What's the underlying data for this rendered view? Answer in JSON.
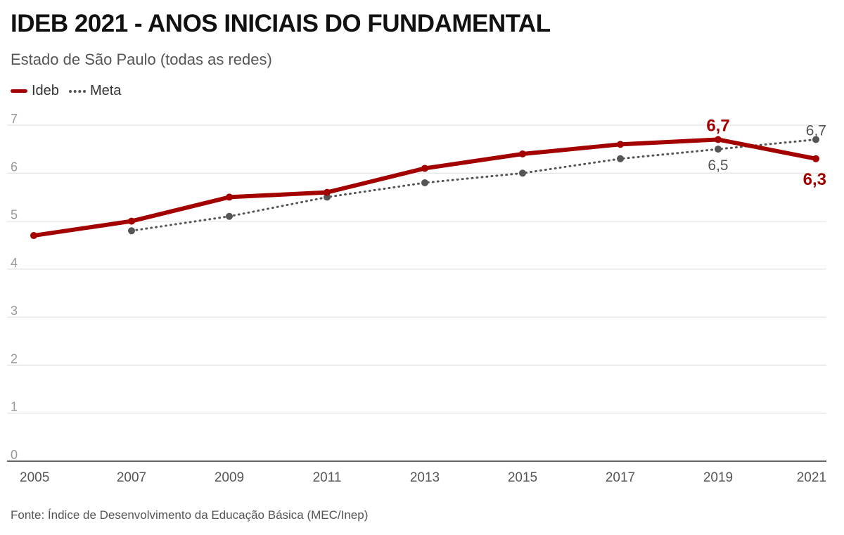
{
  "header": {
    "title": "IDEB 2021 - ANOS INICIAIS DO FUNDAMENTAL",
    "subtitle": "Estado de São Paulo (todas as redes)"
  },
  "legend": {
    "ideb_label": "Ideb",
    "meta_label": "Meta"
  },
  "footer": {
    "source": "Fonte: Índice de Desenvolvimento da Educação Básica (MEC/Inep)"
  },
  "colors": {
    "ideb": "#a30000",
    "meta": "#555555",
    "grid": "#dddddd",
    "axis": "#333333"
  },
  "chart_data": {
    "type": "line",
    "title": "IDEB 2021 - ANOS INICIAIS DO FUNDAMENTAL",
    "subtitle": "Estado de São Paulo (todas as redes)",
    "xlabel": "",
    "ylabel": "",
    "x": [
      2005,
      2007,
      2009,
      2011,
      2013,
      2015,
      2017,
      2019,
      2021
    ],
    "xticks": [
      "2005",
      "2007",
      "2009",
      "2011",
      "2013",
      "2015",
      "2017",
      "2019",
      "2021"
    ],
    "yticks": [
      "0",
      "1",
      "2",
      "3",
      "4",
      "5",
      "6",
      "7"
    ],
    "ylim": [
      0,
      7
    ],
    "grid": true,
    "legend_position": "top-left",
    "series": [
      {
        "name": "Ideb",
        "style": "solid",
        "values": [
          4.7,
          5.0,
          5.5,
          5.6,
          6.1,
          6.4,
          6.6,
          6.7,
          6.3
        ]
      },
      {
        "name": "Meta",
        "style": "dotted",
        "values": [
          null,
          4.8,
          5.1,
          5.5,
          5.8,
          6.0,
          6.3,
          6.5,
          6.7
        ]
      }
    ],
    "annotations": [
      {
        "series": "Ideb",
        "x": 2019,
        "text": "6,7",
        "placement": "above"
      },
      {
        "series": "Ideb",
        "x": 2021,
        "text": "6,3",
        "placement": "below"
      },
      {
        "series": "Meta",
        "x": 2019,
        "text": "6,5",
        "placement": "below"
      },
      {
        "series": "Meta",
        "x": 2021,
        "text": "6,7",
        "placement": "above"
      }
    ]
  }
}
